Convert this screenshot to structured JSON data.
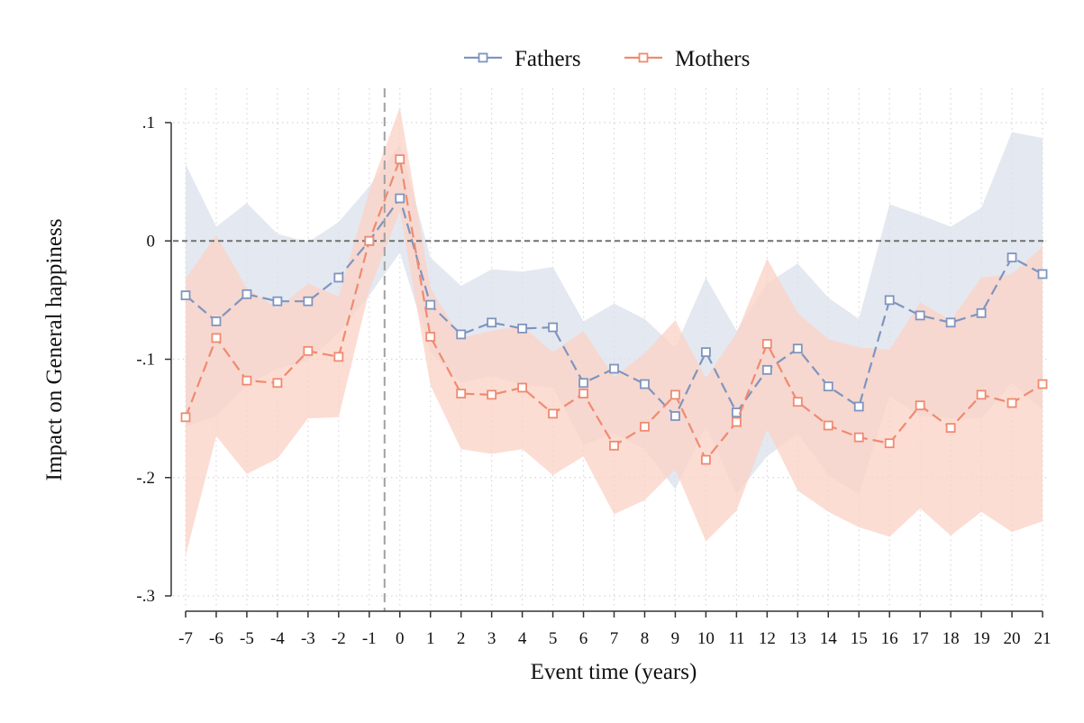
{
  "chart_data": {
    "type": "line",
    "title": "",
    "xlabel": "Event time (years)",
    "ylabel": "Impact on General happiness",
    "x": [
      -7,
      -6,
      -5,
      -4,
      -3,
      -2,
      -1,
      0,
      1,
      2,
      3,
      4,
      5,
      6,
      7,
      8,
      9,
      10,
      11,
      12,
      13,
      14,
      15,
      16,
      17,
      18,
      19,
      20,
      21
    ],
    "x_tick_labels": [
      "-7",
      "-6",
      "-5",
      "-4",
      "-3",
      "-2",
      "-1",
      "0",
      "1",
      "2",
      "3",
      "4",
      "5",
      "6",
      "7",
      "8",
      "9",
      "10",
      "11",
      "12",
      "13",
      "14",
      "15",
      "16",
      "17",
      "18",
      "19",
      "20",
      "21"
    ],
    "y_ticks": [
      0.1,
      0,
      -0.1,
      -0.2,
      -0.3
    ],
    "y_tick_labels": [
      ".1",
      "0",
      "-.1",
      "-.2",
      "-.3"
    ],
    "xlim": [
      -7,
      21
    ],
    "ylim": [
      -0.31,
      0.13
    ],
    "reference_lines": {
      "horizontal_y": 0,
      "vertical_x": -0.5
    },
    "grid": true,
    "legend_position": "top-center",
    "series": [
      {
        "name": "Fathers",
        "color": "#7f95bf",
        "band_color": "#dde2ec",
        "values": [
          -0.046,
          -0.068,
          -0.045,
          -0.051,
          -0.051,
          -0.031,
          0.0,
          0.036,
          -0.054,
          -0.079,
          -0.069,
          -0.074,
          -0.073,
          -0.12,
          -0.108,
          -0.121,
          -0.148,
          -0.094,
          -0.145,
          -0.109,
          -0.091,
          -0.123,
          -0.14,
          -0.05,
          -0.063,
          -0.069,
          -0.061,
          -0.014,
          -0.028
        ],
        "ci_upper": [
          0.065,
          0.012,
          0.032,
          0.006,
          -0.001,
          0.016,
          0.046,
          0.082,
          -0.014,
          -0.038,
          -0.024,
          -0.026,
          -0.022,
          -0.068,
          -0.053,
          -0.066,
          -0.09,
          -0.031,
          -0.076,
          -0.036,
          -0.019,
          -0.048,
          -0.066,
          0.031,
          0.022,
          0.012,
          0.028,
          0.092,
          0.087
        ],
        "ci_lower": [
          -0.157,
          -0.148,
          -0.122,
          -0.108,
          -0.101,
          -0.078,
          -0.046,
          -0.01,
          -0.094,
          -0.12,
          -0.114,
          -0.122,
          -0.124,
          -0.172,
          -0.163,
          -0.176,
          -0.21,
          -0.157,
          -0.214,
          -0.182,
          -0.163,
          -0.198,
          -0.214,
          -0.131,
          -0.148,
          -0.15,
          -0.15,
          -0.12,
          -0.143
        ]
      },
      {
        "name": "Mothers",
        "color": "#f08a70",
        "band_color": "#fbd3c6",
        "values": [
          -0.149,
          -0.082,
          -0.118,
          -0.12,
          -0.093,
          -0.098,
          0.0,
          0.069,
          -0.081,
          -0.129,
          -0.13,
          -0.124,
          -0.146,
          -0.129,
          -0.173,
          -0.157,
          -0.13,
          -0.185,
          -0.153,
          -0.087,
          -0.136,
          -0.156,
          -0.166,
          -0.171,
          -0.139,
          -0.158,
          -0.13,
          -0.137,
          -0.121
        ],
        "ci_upper": [
          -0.032,
          0.005,
          -0.04,
          -0.057,
          -0.036,
          -0.047,
          0.042,
          0.113,
          -0.04,
          -0.082,
          -0.076,
          -0.072,
          -0.094,
          -0.076,
          -0.115,
          -0.095,
          -0.067,
          -0.116,
          -0.078,
          -0.015,
          -0.061,
          -0.083,
          -0.09,
          -0.092,
          -0.052,
          -0.067,
          -0.031,
          -0.028,
          -0.005
        ],
        "ci_lower": [
          -0.266,
          -0.165,
          -0.197,
          -0.184,
          -0.15,
          -0.149,
          -0.042,
          0.025,
          -0.122,
          -0.176,
          -0.18,
          -0.176,
          -0.198,
          -0.182,
          -0.231,
          -0.219,
          -0.193,
          -0.254,
          -0.228,
          -0.159,
          -0.211,
          -0.229,
          -0.242,
          -0.25,
          -0.226,
          -0.249,
          -0.229,
          -0.246,
          -0.237
        ]
      }
    ]
  }
}
